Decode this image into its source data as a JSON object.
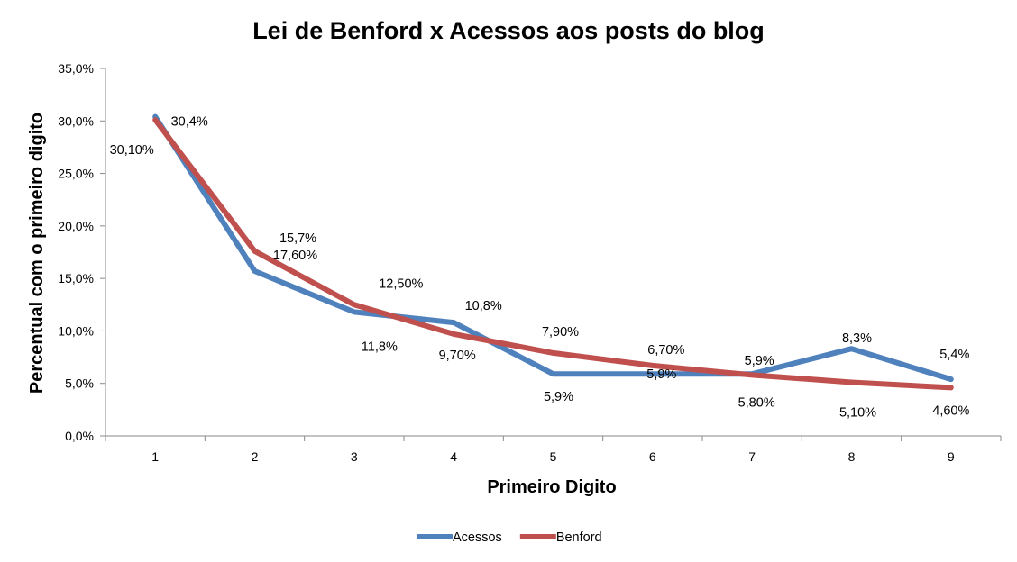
{
  "chart_data": {
    "type": "line",
    "title": "Lei de Benford x Acessos aos posts do blog",
    "xlabel": "Primeiro Digito",
    "ylabel": "Percentual  com o primeiro digito",
    "categories": [
      "1",
      "2",
      "3",
      "4",
      "5",
      "6",
      "7",
      "8",
      "9"
    ],
    "ylim": [
      0,
      35
    ],
    "yticks": [
      "0,0%",
      "5,0%",
      "10,0%",
      "15,0%",
      "20,0%",
      "25,0%",
      "30,0%",
      "35,0%"
    ],
    "grid": false,
    "legend_position": "bottom",
    "series": [
      {
        "name": "Acessos",
        "color": "#4F81BD",
        "values": [
          30.4,
          15.7,
          11.8,
          10.8,
          5.9,
          5.9,
          5.9,
          8.3,
          5.4
        ],
        "labels": [
          "30,4%",
          "15,7%",
          "11,8%",
          "10,8%",
          "5,9%",
          "5,9%",
          "5,9%",
          "8,3%",
          "5,4%"
        ]
      },
      {
        "name": "Benford",
        "color": "#C0504D",
        "values": [
          30.1,
          17.6,
          12.5,
          9.7,
          7.9,
          6.7,
          5.8,
          5.1,
          4.6
        ],
        "labels": [
          "30,10%",
          "17,60%",
          "12,50%",
          "9,70%",
          "7,90%",
          "6,70%",
          "5,80%",
          "5,10%",
          "4,60%"
        ]
      }
    ]
  }
}
